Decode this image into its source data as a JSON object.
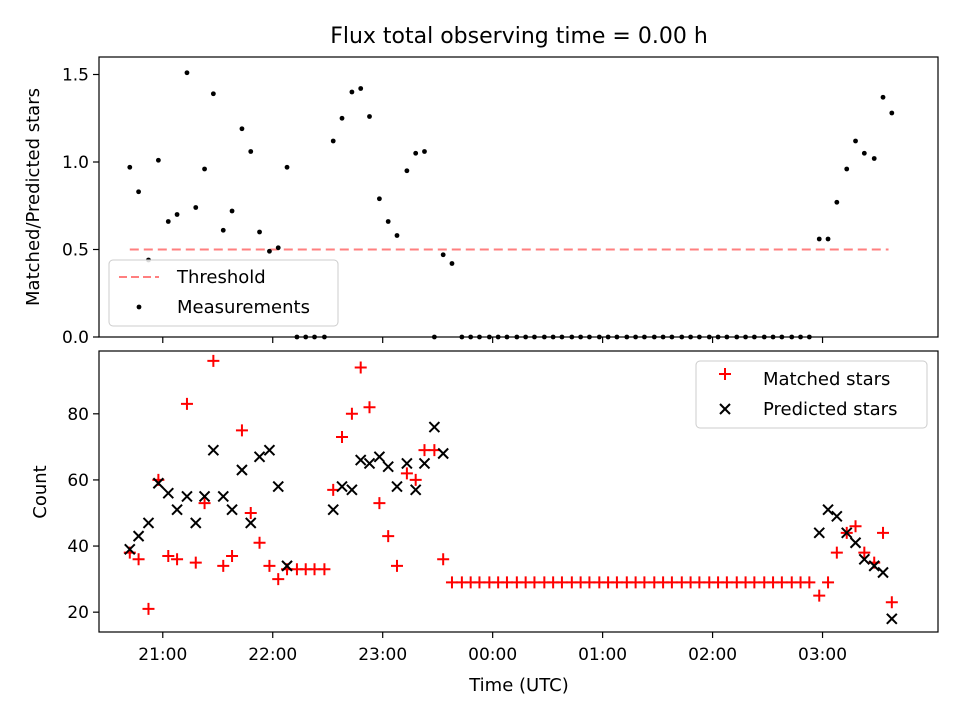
{
  "figure_title": "Flux total observing time = 0.00 h",
  "colors": {
    "threshold": "#ff7f7f",
    "measurements": "#000000",
    "matched": "#ff0000",
    "predicted": "#000000",
    "axes": "#000000",
    "background": "#ffffff"
  },
  "chart_data": [
    {
      "type": "scatter",
      "ylabel": "Matched/Predicted stars",
      "ylim": [
        0,
        1.6
      ],
      "yticks": [
        0.0,
        0.5,
        1.0,
        1.5
      ],
      "ytick_labels": [
        "0.0",
        "0.5",
        "1.0",
        "1.5"
      ],
      "xticks": [
        21,
        22,
        23,
        24,
        25,
        26,
        27
      ],
      "xtick_labels_shown": false,
      "legend_placement": "lower-left",
      "series": [
        {
          "name": "Threshold",
          "style": "dashed-line",
          "x": [
            20.7,
            27.6
          ],
          "values": [
            0.5,
            0.5
          ]
        },
        {
          "name": "Measurements",
          "style": "dots",
          "x": [
            20.7,
            20.78,
            20.87,
            20.96,
            21.05,
            21.13,
            21.22,
            21.3,
            21.38,
            21.46,
            21.55,
            21.63,
            21.72,
            21.8,
            21.88,
            21.97,
            22.05,
            22.13,
            22.22,
            22.3,
            22.38,
            22.47,
            22.55,
            22.63,
            22.72,
            22.8,
            22.88,
            22.97,
            23.05,
            23.13,
            23.22,
            23.3,
            23.38,
            23.47,
            23.55,
            23.63,
            23.72,
            23.8,
            23.88,
            23.97,
            24.05,
            24.13,
            24.22,
            24.3,
            24.38,
            24.47,
            24.55,
            24.63,
            24.72,
            24.8,
            24.88,
            24.97,
            25.05,
            25.13,
            25.22,
            25.3,
            25.38,
            25.47,
            25.55,
            25.63,
            25.72,
            25.8,
            25.88,
            25.97,
            26.05,
            26.13,
            26.22,
            26.3,
            26.38,
            26.47,
            26.55,
            26.63,
            26.72,
            26.8,
            26.88,
            26.97,
            27.05,
            27.13,
            27.22,
            27.3,
            27.38,
            27.47,
            27.55,
            27.63
          ],
          "values": [
            0.97,
            0.83,
            0.44,
            1.01,
            0.66,
            0.7,
            1.51,
            0.74,
            0.96,
            1.39,
            0.61,
            0.72,
            1.19,
            1.06,
            0.6,
            0.49,
            0.51,
            0.97,
            0.0,
            0.0,
            0.0,
            0.0,
            1.12,
            1.25,
            1.4,
            1.42,
            1.26,
            0.79,
            0.66,
            0.58,
            0.95,
            1.05,
            1.06,
            0.0,
            0.47,
            0.42,
            0.0,
            0.0,
            0.0,
            0.0,
            0.0,
            0.0,
            0.0,
            0.0,
            0.0,
            0.0,
            0.0,
            0.0,
            0.0,
            0.0,
            0.0,
            0.0,
            0.0,
            0.0,
            0.0,
            0.0,
            0.0,
            0.0,
            0.0,
            0.0,
            0.0,
            0.0,
            0.0,
            0.0,
            0.0,
            0.0,
            0.0,
            0.0,
            0.0,
            0.0,
            0.0,
            0.0,
            0.0,
            0.0,
            0.0,
            0.56,
            0.56,
            0.77,
            0.96,
            1.12,
            1.05,
            1.02,
            1.37,
            1.28
          ]
        }
      ]
    },
    {
      "type": "scatter",
      "xlabel": "Time (UTC)",
      "ylabel": "Count",
      "ylim": [
        14,
        99
      ],
      "yticks": [
        20,
        40,
        60,
        80
      ],
      "ytick_labels": [
        "20",
        "40",
        "60",
        "80"
      ],
      "xlim": [
        20.42,
        28.05
      ],
      "xticks": [
        21,
        22,
        23,
        24,
        25,
        26,
        27
      ],
      "xtick_labels": [
        "21:00",
        "22:00",
        "23:00",
        "00:00",
        "01:00",
        "02:00",
        "03:00"
      ],
      "legend_placement": "upper-right",
      "series": [
        {
          "name": "Matched stars",
          "marker": "plus",
          "x": [
            20.7,
            20.78,
            20.87,
            20.96,
            21.05,
            21.13,
            21.22,
            21.3,
            21.38,
            21.46,
            21.55,
            21.63,
            21.72,
            21.8,
            21.88,
            21.97,
            22.05,
            22.13,
            22.22,
            22.3,
            22.38,
            22.47,
            22.55,
            22.63,
            22.72,
            22.8,
            22.88,
            22.97,
            23.05,
            23.13,
            23.22,
            23.3,
            23.38,
            23.47,
            23.55,
            23.63,
            23.72,
            23.8,
            23.88,
            23.97,
            24.05,
            24.13,
            24.22,
            24.3,
            24.38,
            24.47,
            24.55,
            24.63,
            24.72,
            24.8,
            24.88,
            24.97,
            25.05,
            25.13,
            25.22,
            25.3,
            25.38,
            25.47,
            25.55,
            25.63,
            25.72,
            25.8,
            25.88,
            25.97,
            26.05,
            26.13,
            26.22,
            26.3,
            26.38,
            26.47,
            26.55,
            26.63,
            26.72,
            26.8,
            26.88,
            26.97,
            27.05,
            27.13,
            27.22,
            27.3,
            27.38,
            27.47,
            27.55,
            27.63
          ],
          "values": [
            38,
            36,
            21,
            60,
            37,
            36,
            83,
            35,
            53,
            96,
            34,
            37,
            75,
            50,
            41,
            34,
            30,
            33,
            33,
            33,
            33,
            33,
            57,
            73,
            80,
            94,
            82,
            53,
            43,
            34,
            62,
            60,
            69,
            69,
            36,
            29,
            29,
            29,
            29,
            29,
            29,
            29,
            29,
            29,
            29,
            29,
            29,
            29,
            29,
            29,
            29,
            29,
            29,
            29,
            29,
            29,
            29,
            29,
            29,
            29,
            29,
            29,
            29,
            29,
            29,
            29,
            29,
            29,
            29,
            29,
            29,
            29,
            29,
            29,
            29,
            25,
            29,
            38,
            44,
            46,
            38,
            35,
            44,
            23
          ]
        },
        {
          "name": "Predicted stars",
          "marker": "x",
          "x": [
            20.7,
            20.78,
            20.87,
            20.96,
            21.05,
            21.13,
            21.22,
            21.3,
            21.38,
            21.46,
            21.55,
            21.63,
            21.72,
            21.8,
            21.88,
            21.97,
            22.05,
            22.13,
            22.55,
            22.63,
            22.72,
            22.8,
            22.88,
            22.97,
            23.05,
            23.13,
            23.22,
            23.3,
            23.38,
            23.47,
            23.55,
            26.97,
            27.05,
            27.13,
            27.22,
            27.3,
            27.38,
            27.47,
            27.55,
            27.63
          ],
          "values": [
            39,
            43,
            47,
            59,
            56,
            51,
            55,
            47,
            55,
            69,
            55,
            51,
            63,
            47,
            67,
            69,
            58,
            34,
            51,
            58,
            57,
            66,
            65,
            67,
            64,
            58,
            65,
            57,
            65,
            76,
            68,
            44,
            51,
            49,
            44,
            41,
            36,
            34,
            32,
            18
          ]
        }
      ]
    }
  ]
}
